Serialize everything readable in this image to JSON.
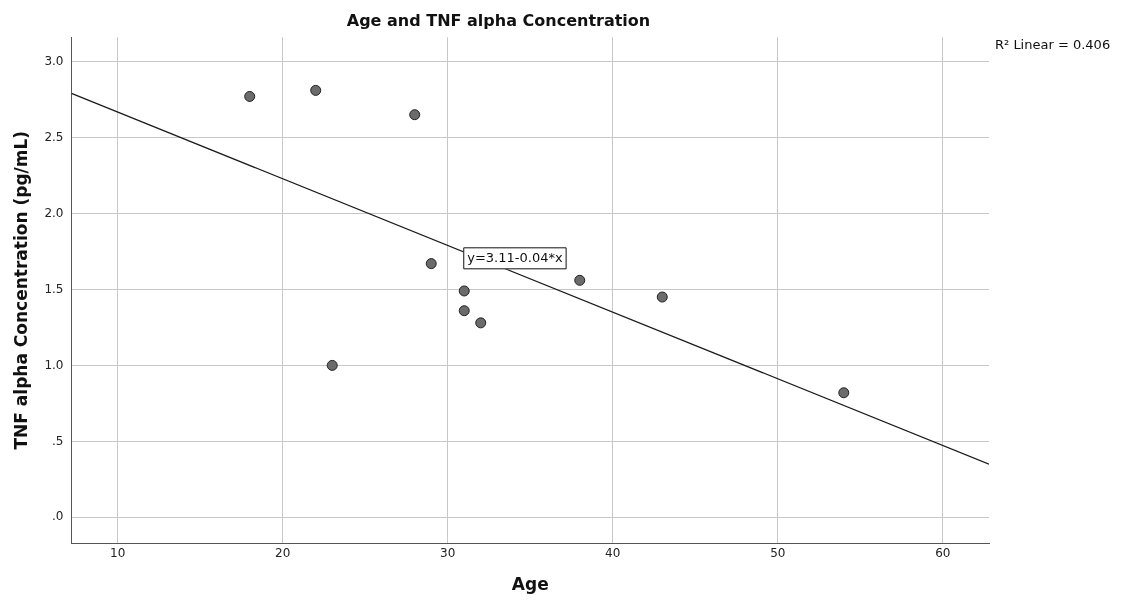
{
  "chart_data": {
    "type": "scatter",
    "title": "Age and TNF alpha Concentration",
    "xlabel": "Age",
    "ylabel": "TNF alpha Concentration (pg/mL)",
    "annotations": [
      "R² Linear = 0.406",
      "y=3.11-0.04*x"
    ],
    "series": [
      {
        "marker": "circle",
        "color": "#6b6b6b",
        "x": [
          18,
          22,
          28,
          29,
          31,
          31,
          32,
          23,
          38,
          43,
          54
        ],
        "values": [
          2.77,
          2.81,
          2.65,
          1.67,
          1.49,
          1.36,
          1.28,
          1.0,
          1.56,
          1.45,
          0.82
        ]
      },
      {
        "type": "line",
        "color": "#1a1a1a",
        "x": [
          7.2,
          62.8
        ],
        "values": [
          2.79,
          0.35
        ]
      }
    ],
    "xlim": [
      7.2,
      62.8
    ],
    "xticks": [
      10,
      20,
      30,
      40,
      50,
      60
    ],
    "ylim": [
      -0.17,
      3.16
    ],
    "yticks": [
      {
        "value": 0,
        "label": ".0"
      },
      {
        "value": 0.5,
        "label": ".5"
      },
      {
        "value": 1,
        "label": "1.0"
      },
      {
        "value": 1.5,
        "label": "1.5"
      },
      {
        "value": 2,
        "label": "2.0"
      },
      {
        "value": 2.5,
        "label": "2.5"
      },
      {
        "value": 3,
        "label": "3.0"
      }
    ],
    "grid": true,
    "legend": false,
    "line_style": "solid"
  }
}
